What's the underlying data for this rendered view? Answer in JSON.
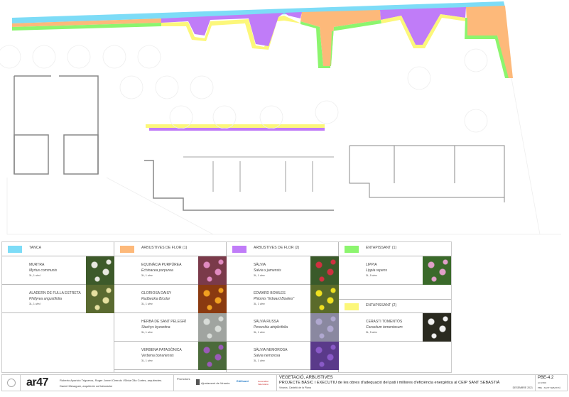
{
  "legend": {
    "columns": [
      {
        "header": "TANCA",
        "color": "#7ddcf7",
        "items": [
          {
            "name": "MURTRA",
            "latin": "Myrtus communis",
            "size": "3L, 1 u/m l",
            "photo": "white-flowers"
          },
          {
            "name": "ALADERN DE FULLA ESTRETA",
            "latin": "Phillyrea angustifolia",
            "size": "3L, 1 u/m l",
            "photo": "yellow-white-flowers"
          }
        ]
      },
      {
        "header": "ARBUSTIVES DE FLOR (1)",
        "color": "#fdb97a",
        "items": [
          {
            "name": "EQUINÀCIA PURPÚREA",
            "latin": "Echinacea purpurea",
            "size": "3L, 1 u/m²",
            "photo": "pink-flowers"
          },
          {
            "name": "GLORIOSA DAISY",
            "latin": "Rudbeckia Bicolor",
            "size": "3L, 1 u/m²",
            "photo": "orange-flowers"
          },
          {
            "name": "HERBA DE SANT PELEGRÍ",
            "latin": "Stachys byzantina",
            "size": "3L, 1 u/m²",
            "photo": "silver-leaves"
          },
          {
            "name": "VERBENA PATAGÒNICA",
            "latin": "Verbena bonariensis",
            "size": "3L, 1 u/m²",
            "photo": "purple-flowers"
          }
        ]
      },
      {
        "header": "ARBUSTIVES DE FLOR (2)",
        "color": "#c07cf8",
        "items": [
          {
            "name": "SÀLVIA",
            "latin": "Salvia x jamensis",
            "size": "3L, 1 u/m²",
            "photo": "red-flowers"
          },
          {
            "name": "EDWARD BOWLES",
            "latin": "Phlomis \"Edward Bowles\"",
            "size": "3L, 1 u/m²",
            "photo": "yellow-flowers"
          },
          {
            "name": "SÀLVIA RUSSA",
            "latin": "Perovskia atriplicifolia",
            "size": "3L, 1 u/m²",
            "photo": "lavender-flowers"
          },
          {
            "name": "SÀLVIA NEMOROSA",
            "latin": "Salvia nemorosa",
            "size": "3L, 1 u/m²",
            "photo": "violet-flowers"
          }
        ]
      },
      {
        "header": "ENTAPISSANT (1)",
        "color": "#8cf56e",
        "header2": "ENTAPISSANT (2)",
        "color2": "#fcf77a",
        "items": [
          {
            "name": "LIPPIA",
            "latin": "Lippia repens",
            "size": "3L, 5 u/m²",
            "photo": "small-pink-flowers"
          },
          {
            "name": "CERASTI TOMENTÓS",
            "latin": "Cerastium tomentosum",
            "size": "3L, 5 u/m²",
            "photo": "small-white-flowers"
          }
        ]
      }
    ]
  },
  "footer": {
    "logo": "ar47",
    "authors": "Roberto Aparicio Trigueros, Roger Jornet Cirerols i Silvia Olla Cortes, arquitectes.",
    "collaborator": "Daniel Mesaguer, arquitecte col·laborador",
    "promoters_label": "Promotors",
    "promoter1": "Ajuntament de Vinaròs",
    "promoter2": "Edificant",
    "promoter3": "Generalitat Valenciana",
    "title": "VEGETACIÓ, ARBUSTIVES",
    "project": "PROJECTE BÀSIC I EXECUTIU de les obres d'adequació del pati i millores d'eficiència energètica al CEIP SANT SEBASTIÀ",
    "location": "Vinaròs, Castelló de la Plana",
    "date": "DESEMBRE 2021",
    "sheet": "PBE-4.2",
    "scale": "A3 1/500",
    "code": "PBE - SANT SEBASTIÀ"
  }
}
